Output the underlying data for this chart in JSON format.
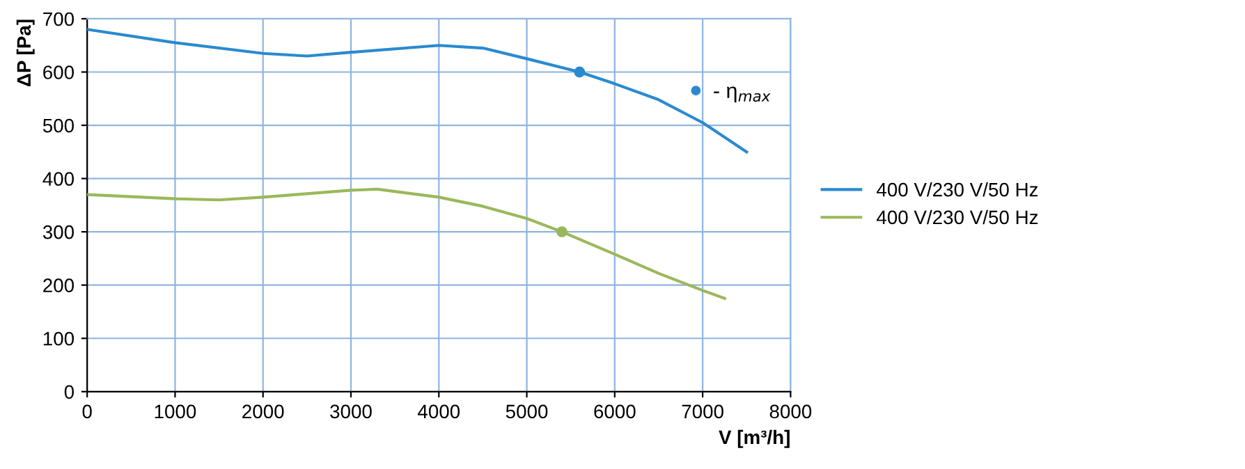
{
  "chart_data": {
    "type": "line",
    "xlabel": "V [m³/h]",
    "ylabel": "ΔP [Pa]",
    "xlim": [
      0,
      8000
    ],
    "xticks": [
      0,
      1000,
      2000,
      3000,
      4000,
      5000,
      6000,
      7000,
      8000
    ],
    "ylim": [
      0,
      700
    ],
    "yticks": [
      0,
      100,
      200,
      300,
      400,
      500,
      600,
      700
    ],
    "grid": true,
    "legend": "right",
    "marker": "none",
    "line_style": "solid",
    "series": [
      {
        "name": "400 V/230 V/50 Hz",
        "color": "#2a8ad0",
        "x": [
          0,
          1000,
          2000,
          2500,
          3000,
          4000,
          4500,
          5000,
          5600,
          6000,
          6500,
          7000,
          7500
        ],
        "values": [
          680,
          655,
          635,
          630,
          637,
          650,
          645,
          625,
          600,
          578,
          548,
          505,
          450
        ]
      },
      {
        "name": "400 V/230 V/50 Hz",
        "color": "#9ab85a",
        "x": [
          0,
          1000,
          1500,
          2000,
          3000,
          3300,
          4000,
          4500,
          5000,
          5400,
          6000,
          6500,
          7000,
          7250
        ],
        "values": [
          370,
          362,
          360,
          365,
          378,
          380,
          365,
          348,
          325,
          300,
          258,
          222,
          190,
          175
        ]
      },
      {
        "type": "scatter",
        "name": "- η$_{max}$",
        "color": "#2a8ad0",
        "x": [
          5600
        ],
        "values": [
          600
        ],
        "marker": "circle"
      },
      {
        "type": "scatter",
        "color": "#9ab85a",
        "x": [
          5400
        ],
        "values": [
          300
        ],
        "marker": "circle"
      }
    ]
  }
}
